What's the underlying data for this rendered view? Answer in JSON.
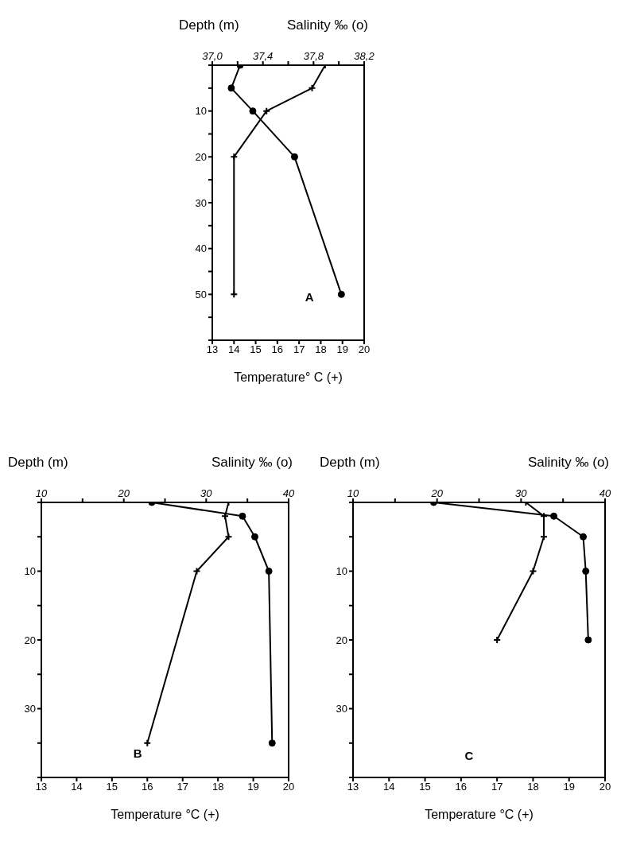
{
  "chart_data": [
    {
      "type": "line",
      "xlabel": "Temperature° C (+)",
      "ylabel": "Depth (m)",
      "x2label": "Salinity ‰ (o)",
      "xlim": [
        13,
        20
      ],
      "xticks": [
        13,
        14,
        15,
        16,
        17,
        18,
        19,
        20
      ],
      "x2lim": [
        37.0,
        38.2
      ],
      "x2ticks": [
        {
          "value": 37.0,
          "label": "37,0"
        },
        {
          "value": 37.2,
          "label": null
        },
        {
          "value": 37.4,
          "label": "37,4"
        },
        {
          "value": 37.6,
          "label": null
        },
        {
          "value": 37.8,
          "label": "37,8"
        },
        {
          "value": 38.0,
          "label": null
        },
        {
          "value": 38.2,
          "label": "38,2"
        }
      ],
      "ylim": [
        60,
        0
      ],
      "yticks": [
        {
          "value": 0,
          "label": null
        },
        {
          "value": 5,
          "label": null
        },
        10,
        {
          "value": 15,
          "label": null
        },
        20,
        {
          "value": 25,
          "label": null
        },
        30,
        {
          "value": 35,
          "label": null
        },
        40,
        {
          "value": 45,
          "label": null
        },
        50,
        {
          "value": 55,
          "label": null
        },
        {
          "value": 60,
          "label": null
        }
      ],
      "annotations": [
        "A"
      ],
      "series": [
        {
          "color": "#000000",
          "axis": "x2",
          "marker": "circle",
          "x": [
            37.22,
            37.15,
            37.32,
            37.65,
            38.02
          ],
          "values": [
            0,
            5,
            10,
            20,
            50
          ]
        },
        {
          "color": "#000000",
          "marker": "cross",
          "x": [
            18.2,
            17.6,
            15.5,
            14.0,
            14.0
          ],
          "values": [
            0,
            5,
            10,
            20,
            50
          ]
        }
      ]
    },
    {
      "type": "line",
      "xlabel": "Temperature °C (+)",
      "ylabel": "Depth (m)",
      "x2label": "Salinity ‰ (o)",
      "xlim": [
        13,
        20
      ],
      "xticks": [
        13,
        14,
        15,
        16,
        17,
        18,
        19,
        20
      ],
      "x2lim": [
        10,
        40
      ],
      "x2ticks": [
        10,
        {
          "value": 15,
          "label": null
        },
        20,
        {
          "value": 25,
          "label": null
        },
        30,
        {
          "value": 35,
          "label": null
        },
        40
      ],
      "ylim": [
        40,
        0
      ],
      "yticks": [
        {
          "value": 0,
          "label": null
        },
        {
          "value": 5,
          "label": null
        },
        10,
        {
          "value": 15,
          "label": null
        },
        20,
        {
          "value": 25,
          "label": null
        },
        30,
        {
          "value": 35,
          "label": null
        },
        {
          "value": 40,
          "label": null
        }
      ],
      "annotations": [
        "B"
      ],
      "series": [
        {
          "color": "#000000",
          "axis": "x2",
          "marker": "circle",
          "x": [
            23.4,
            34.4,
            35.9,
            37.6,
            38.0
          ],
          "values": [
            0,
            2,
            5,
            10,
            35
          ]
        },
        {
          "color": "#000000",
          "marker": "cross",
          "x": [
            18.3,
            18.2,
            18.3,
            17.4,
            16.0
          ],
          "values": [
            0,
            2,
            5,
            10,
            35
          ]
        }
      ]
    },
    {
      "type": "line",
      "xlabel": "Temperature °C (+)",
      "ylabel": "Depth (m)",
      "x2label": "Salinity ‰ (o)",
      "xlim": [
        13,
        20
      ],
      "xticks": [
        13,
        14,
        15,
        16,
        17,
        18,
        19,
        20
      ],
      "x2lim": [
        10,
        40
      ],
      "x2ticks": [
        10,
        {
          "value": 15,
          "label": null
        },
        20,
        {
          "value": 25,
          "label": null
        },
        30,
        {
          "value": 35,
          "label": null
        },
        40
      ],
      "ylim": [
        40,
        0
      ],
      "yticks": [
        {
          "value": 0,
          "label": null
        },
        {
          "value": 5,
          "label": null
        },
        10,
        {
          "value": 15,
          "label": null
        },
        20,
        {
          "value": 25,
          "label": null
        },
        30,
        {
          "value": 35,
          "label": null
        },
        {
          "value": 40,
          "label": null
        }
      ],
      "annotations": [
        "C"
      ],
      "series": [
        {
          "color": "#000000",
          "axis": "x2",
          "marker": "circle",
          "x": [
            19.6,
            33.9,
            37.4,
            37.7,
            38.0
          ],
          "values": [
            0,
            2,
            5,
            10,
            20
          ]
        },
        {
          "color": "#000000",
          "marker": "cross",
          "x": [
            17.8,
            18.3,
            18.3,
            18.0,
            17.0
          ],
          "values": [
            0,
            2,
            5,
            10,
            20
          ]
        }
      ]
    }
  ]
}
